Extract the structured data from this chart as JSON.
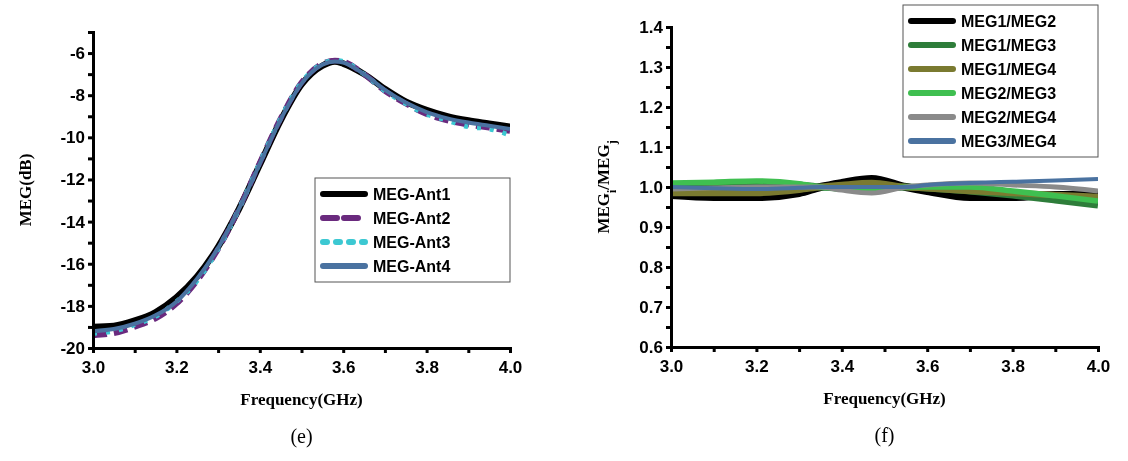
{
  "chart_data": [
    {
      "type": "line",
      "xlabel": "Frequency(GHz)",
      "ylabel": "MEG(dB)",
      "annotations": [
        "(e)"
      ],
      "legend": "right",
      "grid": false,
      "marker": "none",
      "x": [
        3.0,
        3.05,
        3.1,
        3.15,
        3.2,
        3.25,
        3.3,
        3.35,
        3.4,
        3.45,
        3.5,
        3.55,
        3.58,
        3.6,
        3.65,
        3.7,
        3.75,
        3.8,
        3.85,
        3.9,
        3.95,
        4.0
      ],
      "xlim": [
        3.0,
        4.0
      ],
      "xticks": [
        {
          "value": 3.0,
          "label": "3.0"
        },
        {
          "value": 3.1,
          "label": null
        },
        3.2,
        {
          "value": 3.3,
          "label": null
        },
        3.4,
        {
          "value": 3.5,
          "label": null
        },
        3.6,
        {
          "value": 3.7,
          "label": null
        },
        3.8,
        {
          "value": 3.9,
          "label": null
        },
        {
          "value": 4.0,
          "label": "4.0"
        }
      ],
      "ylim": [
        -20,
        -5
      ],
      "yticks": [
        -20,
        {
          "value": -19,
          "label": null
        },
        -18,
        {
          "value": -17,
          "label": null
        },
        -16,
        {
          "value": -15,
          "label": null
        },
        -14,
        {
          "value": -13,
          "label": null
        },
        -12,
        {
          "value": -11,
          "label": null
        },
        -10,
        {
          "value": -9,
          "label": null
        },
        -8,
        {
          "value": -7,
          "label": null
        },
        -6
      ],
      "series": [
        {
          "name": "MEG-Ant1",
          "color": "#000000",
          "line_style": "solid",
          "values": [
            -19.0,
            -18.95,
            -18.7,
            -18.3,
            -17.6,
            -16.6,
            -15.2,
            -13.4,
            -11.3,
            -9.2,
            -7.5,
            -6.6,
            -6.4,
            -6.5,
            -7.0,
            -7.7,
            -8.3,
            -8.7,
            -9.0,
            -9.2,
            -9.35,
            -9.5
          ]
        },
        {
          "name": "MEG-Ant2",
          "color": "#6a2a7e",
          "line_style": "dashed",
          "values": [
            -19.4,
            -19.3,
            -19.0,
            -18.6,
            -17.9,
            -16.8,
            -15.3,
            -13.4,
            -11.2,
            -9.1,
            -7.4,
            -6.5,
            -6.35,
            -6.4,
            -7.0,
            -7.8,
            -8.4,
            -8.9,
            -9.2,
            -9.4,
            -9.55,
            -9.7
          ]
        },
        {
          "name": "MEG-Ant3",
          "color": "#3cc8d2",
          "line_style": "dotted",
          "values": [
            -19.3,
            -19.2,
            -18.9,
            -18.5,
            -17.8,
            -16.8,
            -15.3,
            -13.4,
            -11.2,
            -9.1,
            -7.4,
            -6.5,
            -6.35,
            -6.4,
            -7.0,
            -7.8,
            -8.4,
            -8.9,
            -9.2,
            -9.5,
            -9.6,
            -9.9
          ]
        },
        {
          "name": "MEG-Ant4",
          "color": "#4a72a0",
          "line_style": "solid",
          "values": [
            -19.2,
            -19.1,
            -18.85,
            -18.45,
            -17.8,
            -16.7,
            -15.25,
            -13.4,
            -11.25,
            -9.15,
            -7.45,
            -6.55,
            -6.4,
            -6.45,
            -7.0,
            -7.75,
            -8.35,
            -8.8,
            -9.1,
            -9.3,
            -9.45,
            -9.6
          ]
        }
      ]
    },
    {
      "type": "line",
      "xlabel": "Frequency(GHz)",
      "ylabel": "MEG$_{i}$/MEG$_{j}$",
      "annotations": [
        "(f)"
      ],
      "legend": "top right",
      "grid": false,
      "marker": "none",
      "x": [
        3.0,
        3.1,
        3.2,
        3.3,
        3.35,
        3.4,
        3.47,
        3.55,
        3.6,
        3.7,
        3.8,
        3.9,
        4.0
      ],
      "xlim": [
        3.0,
        4.0
      ],
      "xticks": [
        {
          "value": 3.0,
          "label": "3.0"
        },
        {
          "value": 3.1,
          "label": null
        },
        3.2,
        {
          "value": 3.3,
          "label": null
        },
        3.4,
        {
          "value": 3.5,
          "label": null
        },
        3.6,
        {
          "value": 3.7,
          "label": null
        },
        3.8,
        {
          "value": 3.9,
          "label": null
        },
        {
          "value": 4.0,
          "label": "4.0"
        }
      ],
      "ylim": [
        0.6,
        1.4
      ],
      "yticks": [
        0.6,
        {
          "value": 0.65,
          "label": null
        },
        0.7,
        {
          "value": 0.75,
          "label": null
        },
        0.8,
        {
          "value": 0.85,
          "label": null
        },
        0.9,
        {
          "value": 0.95,
          "label": null
        },
        {
          "value": 1.0,
          "label": "1.0"
        },
        {
          "value": 1.05,
          "label": null
        },
        1.1,
        {
          "value": 1.15,
          "label": null
        },
        1.2,
        {
          "value": 1.25,
          "label": null
        },
        1.3,
        {
          "value": 1.35,
          "label": null
        },
        1.4
      ],
      "series": [
        {
          "name": "MEG1/MEG2",
          "color": "#000000",
          "line_style": "solid",
          "values": [
            0.98,
            0.975,
            0.975,
            0.985,
            1.0,
            1.01,
            1.02,
            1.0,
            0.99,
            0.975,
            0.975,
            0.98,
            0.98
          ]
        },
        {
          "name": "MEG1/MEG3",
          "color": "#2e7d3a",
          "line_style": "solid",
          "values": [
            1.005,
            1.008,
            1.01,
            1.005,
            1.0,
            0.997,
            0.995,
            1.0,
            0.998,
            0.99,
            0.98,
            0.968,
            0.955
          ]
        },
        {
          "name": "MEG1/MEG4",
          "color": "#7a7a30",
          "line_style": "solid",
          "values": [
            0.985,
            0.985,
            0.985,
            0.993,
            1.0,
            1.005,
            1.01,
            1.0,
            0.997,
            0.99,
            0.985,
            0.98,
            0.975
          ]
        },
        {
          "name": "MEG2/MEG3",
          "color": "#3fbf50",
          "line_style": "solid",
          "values": [
            1.01,
            1.012,
            1.015,
            1.008,
            1.0,
            0.995,
            0.99,
            1.0,
            1.0,
            1.0,
            0.99,
            0.978,
            0.965
          ]
        },
        {
          "name": "MEG2/MEG4",
          "color": "#8a8a8a",
          "line_style": "solid",
          "values": [
            0.995,
            0.998,
            1.0,
            1.0,
            1.0,
            0.992,
            0.985,
            1.0,
            1.005,
            1.01,
            1.005,
            1.0,
            0.99
          ]
        },
        {
          "name": "MEG3/MEG4",
          "color": "#4a72a0",
          "line_style": "solid",
          "values": [
            1.0,
            0.997,
            0.995,
            0.998,
            1.0,
            1.0,
            1.0,
            1.0,
            1.005,
            1.01,
            1.013,
            1.016,
            1.02
          ]
        }
      ]
    }
  ]
}
